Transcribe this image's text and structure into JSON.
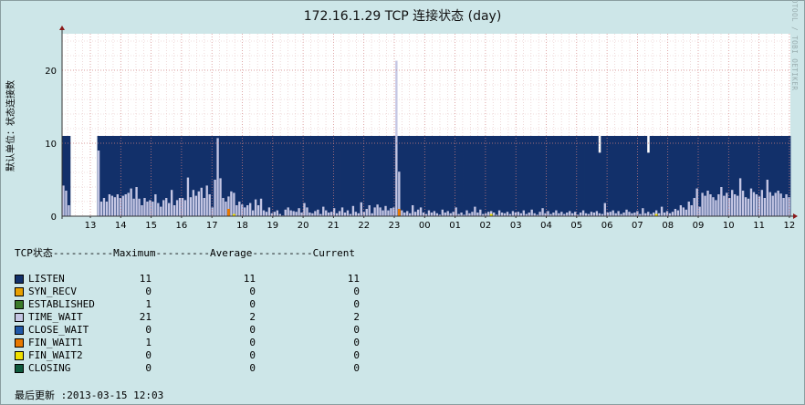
{
  "chart_data": {
    "type": "area",
    "title": "172.16.1.29 TCP 连接状态 (day)",
    "ylabel": "默认单位：状态连接数",
    "watermark": "RRDTOOL / TOBI OETIKER",
    "ylim": [
      0,
      25
    ],
    "y_ticks": [
      0,
      10,
      20
    ],
    "x_ticks": [
      "13",
      "14",
      "15",
      "16",
      "17",
      "18",
      "19",
      "20",
      "21",
      "22",
      "23",
      "00",
      "01",
      "02",
      "03",
      "04",
      "05",
      "06",
      "07",
      "08",
      "09",
      "10",
      "11",
      "12"
    ],
    "grid": true,
    "stacked": true,
    "series": [
      {
        "name": "LISTEN",
        "color": "#12306a",
        "max": 11,
        "avg": 11,
        "cur": 11
      },
      {
        "name": "SYN_RECV",
        "color": "#e8a000",
        "max": 0,
        "avg": 0,
        "cur": 0
      },
      {
        "name": "ESTABLISHED",
        "color": "#3a7a2a",
        "max": 1,
        "avg": 0,
        "cur": 0
      },
      {
        "name": "TIME_WAIT",
        "color": "#c4c6e4",
        "max": 21,
        "avg": 2,
        "cur": 2
      },
      {
        "name": "CLOSE_WAIT",
        "color": "#2058a8",
        "max": 0,
        "avg": 0,
        "cur": 0
      },
      {
        "name": "FIN_WAIT1",
        "color": "#e87800",
        "max": 1,
        "avg": 0,
        "cur": 0
      },
      {
        "name": "FIN_WAIT2",
        "color": "#f0e000",
        "max": 0,
        "avg": 0,
        "cur": 0
      },
      {
        "name": "CLOSING",
        "color": "#0e5a3c",
        "max": 0,
        "avg": 0,
        "cur": 0
      }
    ],
    "time_wait_samples": [
      4.2,
      3.5,
      1.5,
      0,
      0,
      0,
      0,
      0,
      0,
      0,
      0,
      0,
      0,
      9,
      2,
      2.5,
      2,
      3,
      2.8,
      2.6,
      3,
      2.5,
      2.8,
      3,
      3.2,
      3.8,
      2.4,
      4,
      2.4,
      1.5,
      2.5,
      2,
      2.2,
      2,
      3,
      1.8,
      1.3,
      2.2,
      2.5,
      1.8,
      3.6,
      1.5,
      2.2,
      2.5,
      2.5,
      2.2,
      5.3,
      2.6,
      3.6,
      2.8,
      3.4,
      3.9,
      2.5,
      4.2,
      3,
      1.2,
      5,
      10.7,
      5.2,
      2.5,
      2,
      2.7,
      3.4,
      3.2,
      1.5,
      2,
      1.6,
      1.2,
      1.5,
      1.8,
      0.8,
      2.3,
      1.5,
      2.4,
      0.8,
      0.6,
      1.2,
      0.4,
      0.6,
      0.8,
      0.3,
      0.1,
      0.9,
      1.2,
      0.8,
      0.7,
      0.6,
      1.1,
      0.5,
      1.8,
      1.2,
      0.5,
      0.4,
      0.7,
      0.9,
      0.3,
      1.3,
      0.8,
      0.5,
      0.6,
      1.1,
      0.4,
      0.7,
      1.2,
      0.5,
      0.8,
      0.3,
      1.4,
      0.6,
      0.4,
      1.9,
      0.6,
      1,
      1.5,
      0.4,
      1.2,
      1.6,
      1.2,
      0.8,
      1.4,
      0.8,
      1.1,
      1.2,
      21.3,
      6.1,
      0.8,
      0.5,
      0.7,
      0.4,
      1.5,
      0.6,
      0.9,
      1.2,
      0.5,
      0.3,
      0.8,
      0.5,
      0.7,
      0.4,
      0.2,
      0.9,
      0.5,
      0.7,
      0.4,
      0.6,
      1.2,
      0.3,
      0.5,
      0.2,
      0.8,
      0.4,
      0.6,
      1.3,
      0.5,
      0.9,
      0.3,
      0.4,
      0.6,
      0.7,
      0.5,
      0.2,
      0.8,
      0.5,
      0.4,
      0.6,
      0.3,
      0.7,
      0.5,
      0.6,
      0.4,
      0.8,
      0.3,
      0.5,
      0.9,
      0.4,
      0.2,
      0.6,
      1.1,
      0.4,
      0.7,
      0.3,
      0.5,
      0.8,
      0.4,
      0.6,
      0.3,
      0.5,
      0.7,
      0.4,
      0.6,
      0.2,
      0.5,
      0.8,
      0.4,
      0.3,
      0.6,
      0.5,
      0.7,
      0.4,
      0.3,
      1.8,
      0.5,
      0.6,
      0.8,
      0.4,
      0.7,
      0.3,
      0.5,
      0.9,
      0.6,
      0.4,
      0.5,
      0.7,
      0.3,
      1.1,
      0.4,
      0.6,
      0.3,
      0.5,
      0.8,
      0.4,
      1.3,
      0.5,
      0.7,
      0.4,
      0.6,
      1,
      0.8,
      1.5,
      1.2,
      0.9,
      2,
      1.5,
      2.5,
      3.8,
      1.3,
      3.2,
      2.8,
      3.5,
      3,
      2.6,
      2.2,
      3,
      4,
      2.8,
      3.2,
      2.5,
      3.6,
      3,
      2.8,
      5.2,
      3.5,
      2.6,
      2.4,
      3.8,
      3.3,
      3,
      2.7,
      3.6,
      2.5,
      5,
      3.3,
      2.8,
      3.2,
      3.5,
      3.1,
      2.5,
      3,
      2.6
    ]
  },
  "legend": {
    "header": "TCP状态----------Maximum---------Average----------Current"
  },
  "footer": {
    "updated": "最后更新 :2013-03-15 12:03"
  }
}
